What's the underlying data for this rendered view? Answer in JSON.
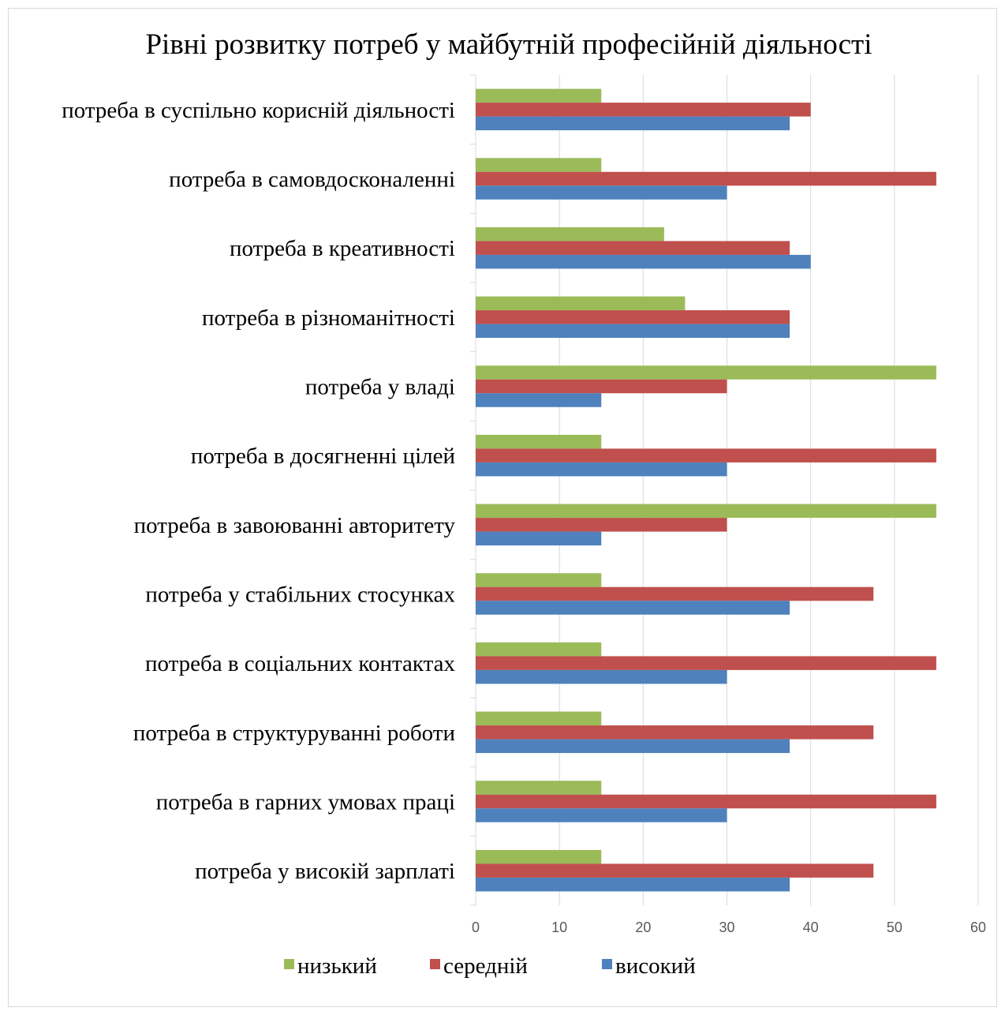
{
  "chart_data": {
    "type": "bar",
    "orientation": "horizontal",
    "title": "Рівні розвитку потреб у майбутній професійній діяльності",
    "xlabel": "",
    "ylabel": "",
    "xlim": [
      0,
      60
    ],
    "x_ticks": [
      0,
      10,
      20,
      30,
      40,
      50,
      60
    ],
    "grid": true,
    "legend_position": "bottom",
    "categories": [
      "потреба в суспільно корисній діяльності",
      "потреба в самовдосконаленні",
      "потреба в креативності",
      "потреба в різноманітності",
      "потреба у владі",
      "потреба в досягненні цілей",
      "потреба в завоюванні авторитету",
      "потреба у стабільних стосунках",
      "потреба в соціальних контактах",
      "потреба в структуруванні роботи",
      "потреба в гарних умовах праці",
      "потреба у високій зарплаті"
    ],
    "series": [
      {
        "name": "низький",
        "color": "#9bbb59",
        "values": [
          15,
          15,
          22.5,
          25,
          55,
          15,
          55,
          15,
          15,
          15,
          15,
          15
        ]
      },
      {
        "name": "середній",
        "color": "#c0504d",
        "values": [
          40,
          55,
          37.5,
          37.5,
          30,
          55,
          30,
          47.5,
          55,
          47.5,
          55,
          47.5
        ]
      },
      {
        "name": "високий",
        "color": "#4f81bd",
        "values": [
          37.5,
          30,
          40,
          37.5,
          15,
          30,
          15,
          37.5,
          30,
          37.5,
          30,
          37.5
        ]
      }
    ]
  }
}
